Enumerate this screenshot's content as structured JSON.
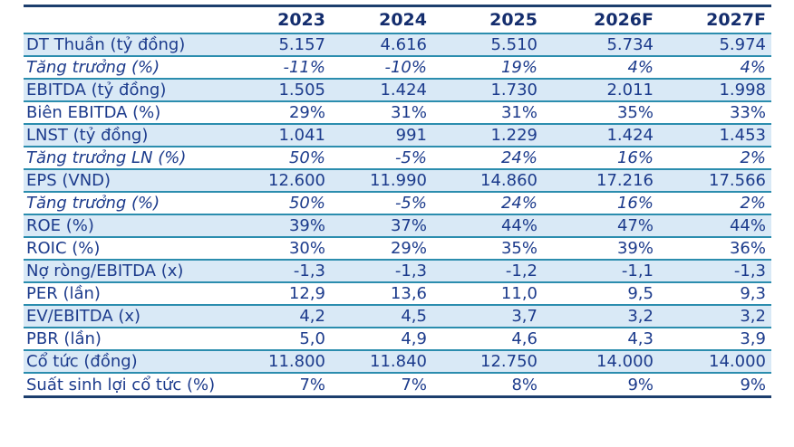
{
  "colors": {
    "text_navy": "#1c3b8c",
    "header_navy": "#152e6e",
    "teal_divider": "#2b8dae",
    "outer_border_navy": "#1c3e6d",
    "row_highlight_blue": "#d9e9f6",
    "background": "#ffffff"
  },
  "table": {
    "columns": [
      "",
      "2023",
      "2024",
      "2025",
      "2026F",
      "2027F"
    ],
    "rows": [
      {
        "label": "DT Thuần (tỷ đồng)",
        "values": [
          "5.157",
          "4.616",
          "5.510",
          "5.734",
          "5.974"
        ],
        "italic": false
      },
      {
        "label": "Tăng trưởng (%)",
        "values": [
          "-11%",
          "-10%",
          "19%",
          "4%",
          "4%"
        ],
        "italic": true
      },
      {
        "label": "EBITDA (tỷ đồng)",
        "values": [
          "1.505",
          "1.424",
          "1.730",
          "2.011",
          "1.998"
        ],
        "italic": false
      },
      {
        "label": "Biên EBITDA (%)",
        "values": [
          "29%",
          "31%",
          "31%",
          "35%",
          "33%"
        ],
        "italic": false
      },
      {
        "label": "LNST (tỷ đồng)",
        "values": [
          "1.041",
          "991",
          "1.229",
          "1.424",
          "1.453"
        ],
        "italic": false
      },
      {
        "label": "Tăng trưởng LN (%)",
        "values": [
          "50%",
          "-5%",
          "24%",
          "16%",
          "2%"
        ],
        "italic": true
      },
      {
        "label": "EPS (VND)",
        "values": [
          "12.600",
          "11.990",
          "14.860",
          "17.216",
          "17.566"
        ],
        "italic": false
      },
      {
        "label": "Tăng trưởng (%)",
        "values": [
          "50%",
          "-5%",
          "24%",
          "16%",
          "2%"
        ],
        "italic": true
      },
      {
        "label": "ROE (%)",
        "values": [
          "39%",
          "37%",
          "44%",
          "47%",
          "44%"
        ],
        "italic": false
      },
      {
        "label": "ROIC (%)",
        "values": [
          "30%",
          "29%",
          "35%",
          "39%",
          "36%"
        ],
        "italic": false
      },
      {
        "label": "Nợ ròng/EBITDA (x)",
        "values": [
          "-1,3",
          "-1,3",
          "-1,2",
          "-1,1",
          "-1,3"
        ],
        "italic": false
      },
      {
        "label": "PER (lần)",
        "values": [
          "12,9",
          "13,6",
          "11,0",
          "9,5",
          "9,3"
        ],
        "italic": false
      },
      {
        "label": "EV/EBITDA (x)",
        "values": [
          "4,2",
          "4,5",
          "3,7",
          "3,2",
          "3,2"
        ],
        "italic": false
      },
      {
        "label": "PBR (lần)",
        "values": [
          "5,0",
          "4,9",
          "4,6",
          "4,3",
          "3,9"
        ],
        "italic": false
      },
      {
        "label": "Cổ tức (đồng)",
        "values": [
          "11.800",
          "11.840",
          "12.750",
          "14.000",
          "14.000"
        ],
        "italic": false
      },
      {
        "label": "Suất sinh lợi cổ tức (%)",
        "values": [
          "7%",
          "7%",
          "8%",
          "9%",
          "9%"
        ],
        "italic": false
      }
    ]
  }
}
